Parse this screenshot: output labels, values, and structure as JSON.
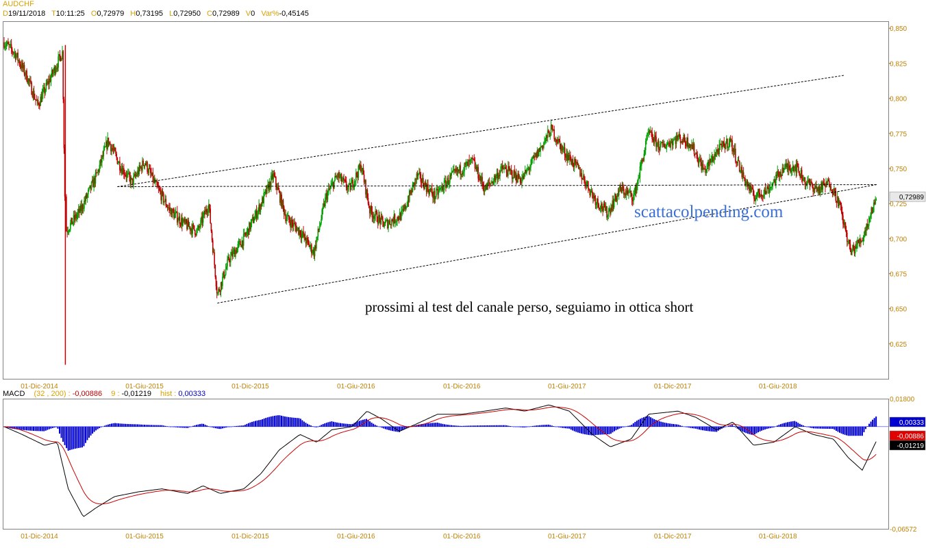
{
  "header": {
    "symbol": "AUDCHF",
    "fields": [
      {
        "label": "D",
        "value": "19/11/2018"
      },
      {
        "label": "T",
        "value": "10:11:25"
      },
      {
        "label": "O",
        "value": "0,72979"
      },
      {
        "label": "H",
        "value": "0,73195"
      },
      {
        "label": "L",
        "value": "0,72950"
      },
      {
        "label": "C",
        "value": "0,72989"
      },
      {
        "label": "V",
        "value": "0"
      },
      {
        "label": "Var%",
        "value": "-0,45145"
      }
    ]
  },
  "annotation": "prossimi al test del canale perso, seguiamo in ottica short",
  "watermark": "scattacolpending.com",
  "macd_header": {
    "name": "MACD",
    "params": "(32 , 200) :",
    "macd_value": "-0,00886",
    "signal_label": "9 :",
    "signal_value": "-0,01219",
    "hist_label": "hist :",
    "hist_value": "0,00333"
  },
  "colors": {
    "up": "#00a000",
    "down": "#c00000",
    "axis": "#c08000",
    "hist": "#0000d0",
    "watermark": "#3a6fd8"
  },
  "chart_data": [
    {
      "type": "candlestick",
      "title": "AUDCHF",
      "ylim": [
        0.6,
        0.855
      ],
      "yticks": [
        "0,850",
        "0,825",
        "0,800",
        "0,775",
        "0,750",
        "0,725",
        "0,700",
        "0,675",
        "0,650",
        "0,625"
      ],
      "ytick_values": [
        0.85,
        0.825,
        0.8,
        0.775,
        0.75,
        0.725,
        0.7,
        0.675,
        0.65,
        0.625
      ],
      "xticks": [
        "01-Dic-2014",
        "01-Giu-2015",
        "01-Dic-2015",
        "01-Giu-2016",
        "01-Dic-2016",
        "01-Giu-2017",
        "01-Dic-2017",
        "01-Giu-2018"
      ],
      "last_price_label": "0,72989",
      "last_price": 0.72989,
      "price_path": [
        [
          "2014-10-01",
          0.84
        ],
        [
          "2014-10-20",
          0.832
        ],
        [
          "2014-11-10",
          0.815
        ],
        [
          "2014-11-28",
          0.795
        ],
        [
          "2014-12-15",
          0.81
        ],
        [
          "2015-01-10",
          0.833
        ],
        [
          "2015-01-15",
          0.705
        ],
        [
          "2015-02-10",
          0.72
        ],
        [
          "2015-03-10",
          0.745
        ],
        [
          "2015-03-30",
          0.77
        ],
        [
          "2015-04-20",
          0.752
        ],
        [
          "2015-05-10",
          0.74
        ],
        [
          "2015-06-01",
          0.755
        ],
        [
          "2015-06-20",
          0.738
        ],
        [
          "2015-07-15",
          0.72
        ],
        [
          "2015-08-10",
          0.71
        ],
        [
          "2015-09-01",
          0.705
        ],
        [
          "2015-09-20",
          0.725
        ],
        [
          "2015-10-05",
          0.66
        ],
        [
          "2015-10-25",
          0.685
        ],
        [
          "2015-11-20",
          0.7
        ],
        [
          "2015-12-20",
          0.725
        ],
        [
          "2016-01-10",
          0.745
        ],
        [
          "2016-02-01",
          0.715
        ],
        [
          "2016-02-25",
          0.705
        ],
        [
          "2016-03-20",
          0.69
        ],
        [
          "2016-04-10",
          0.73
        ],
        [
          "2016-04-30",
          0.745
        ],
        [
          "2016-05-20",
          0.735
        ],
        [
          "2016-06-10",
          0.752
        ],
        [
          "2016-06-25",
          0.72
        ],
        [
          "2016-07-20",
          0.71
        ],
        [
          "2016-08-20",
          0.717
        ],
        [
          "2016-09-15",
          0.745
        ],
        [
          "2016-10-15",
          0.73
        ],
        [
          "2016-11-15",
          0.745
        ],
        [
          "2016-12-20",
          0.755
        ],
        [
          "2017-01-10",
          0.735
        ],
        [
          "2017-02-10",
          0.75
        ],
        [
          "2017-03-15",
          0.742
        ],
        [
          "2017-04-10",
          0.76
        ],
        [
          "2017-05-05",
          0.778
        ],
        [
          "2017-05-25",
          0.763
        ],
        [
          "2017-06-20",
          0.75
        ],
        [
          "2017-07-20",
          0.728
        ],
        [
          "2017-08-10",
          0.718
        ],
        [
          "2017-09-01",
          0.735
        ],
        [
          "2017-09-25",
          0.73
        ],
        [
          "2017-10-20",
          0.775
        ],
        [
          "2017-11-10",
          0.765
        ],
        [
          "2017-12-10",
          0.772
        ],
        [
          "2018-01-01",
          0.768
        ],
        [
          "2018-01-25",
          0.748
        ],
        [
          "2018-02-15",
          0.762
        ],
        [
          "2018-03-10",
          0.77
        ],
        [
          "2018-04-01",
          0.745
        ],
        [
          "2018-04-20",
          0.73
        ],
        [
          "2018-05-15",
          0.735
        ],
        [
          "2018-06-10",
          0.75
        ],
        [
          "2018-07-01",
          0.752
        ],
        [
          "2018-07-20",
          0.74
        ],
        [
          "2018-08-10",
          0.735
        ],
        [
          "2018-08-30",
          0.74
        ],
        [
          "2018-09-15",
          0.725
        ],
        [
          "2018-10-05",
          0.69
        ],
        [
          "2018-10-25",
          0.7
        ],
        [
          "2018-11-19",
          0.72989
        ]
      ],
      "trendlines": [
        {
          "from": [
            "2015-04-15",
            0.737
          ],
          "to": [
            "2018-11-19",
            0.7385
          ]
        },
        {
          "from": [
            "2015-10-05",
            0.654
          ],
          "to": [
            "2018-11-19",
            0.7385
          ]
        }
      ]
    },
    {
      "type": "line",
      "title": "MACD",
      "ylim": [
        -0.06572,
        0.018
      ],
      "yticks": [
        "0,01800",
        "-0,06572"
      ],
      "ytick_values": [
        0.018,
        -0.06572
      ],
      "series": [
        {
          "name": "MACD",
          "value_label": "-0,00886"
        },
        {
          "name": "9",
          "value_label": "-0,01219"
        },
        {
          "name": "hist",
          "value_label": "0,00333"
        }
      ],
      "macd_path": [
        [
          "2014-10-01",
          0.0
        ],
        [
          "2014-11-01",
          -0.005
        ],
        [
          "2014-12-10",
          -0.012
        ],
        [
          "2015-01-01",
          -0.01
        ],
        [
          "2015-01-20",
          -0.04
        ],
        [
          "2015-02-15",
          -0.058
        ],
        [
          "2015-03-10",
          -0.052
        ],
        [
          "2015-04-10",
          -0.045
        ],
        [
          "2015-05-20",
          -0.042
        ],
        [
          "2015-07-01",
          -0.04
        ],
        [
          "2015-08-15",
          -0.043
        ],
        [
          "2015-09-10",
          -0.038
        ],
        [
          "2015-10-10",
          -0.043
        ],
        [
          "2015-11-20",
          -0.04
        ],
        [
          "2015-12-20",
          -0.03
        ],
        [
          "2016-01-20",
          -0.015
        ],
        [
          "2016-02-25",
          -0.005
        ],
        [
          "2016-03-25",
          -0.01
        ],
        [
          "2016-04-20",
          -0.002
        ],
        [
          "2016-05-25",
          0.0
        ],
        [
          "2016-06-20",
          0.01
        ],
        [
          "2016-07-15",
          0.005
        ],
        [
          "2016-08-15",
          -0.003
        ],
        [
          "2016-09-15",
          0.002
        ],
        [
          "2016-10-20",
          0.008
        ],
        [
          "2016-12-01",
          0.008
        ],
        [
          "2017-01-10",
          0.01
        ],
        [
          "2017-02-15",
          0.012
        ],
        [
          "2017-03-20",
          0.01
        ],
        [
          "2017-05-01",
          0.014
        ],
        [
          "2017-06-05",
          0.01
        ],
        [
          "2017-07-15",
          -0.005
        ],
        [
          "2017-08-15",
          -0.013
        ],
        [
          "2017-09-20",
          -0.008
        ],
        [
          "2017-10-20",
          0.008
        ],
        [
          "2017-12-10",
          0.01
        ],
        [
          "2018-01-10",
          0.006
        ],
        [
          "2018-02-15",
          -0.002
        ],
        [
          "2018-03-15",
          0.003
        ],
        [
          "2018-04-20",
          -0.012
        ],
        [
          "2018-05-25",
          -0.01
        ],
        [
          "2018-07-01",
          0.0
        ],
        [
          "2018-08-01",
          -0.005
        ],
        [
          "2018-09-05",
          -0.008
        ],
        [
          "2018-10-01",
          -0.02
        ],
        [
          "2018-10-25",
          -0.028
        ],
        [
          "2018-11-19",
          -0.00886
        ]
      ]
    }
  ]
}
